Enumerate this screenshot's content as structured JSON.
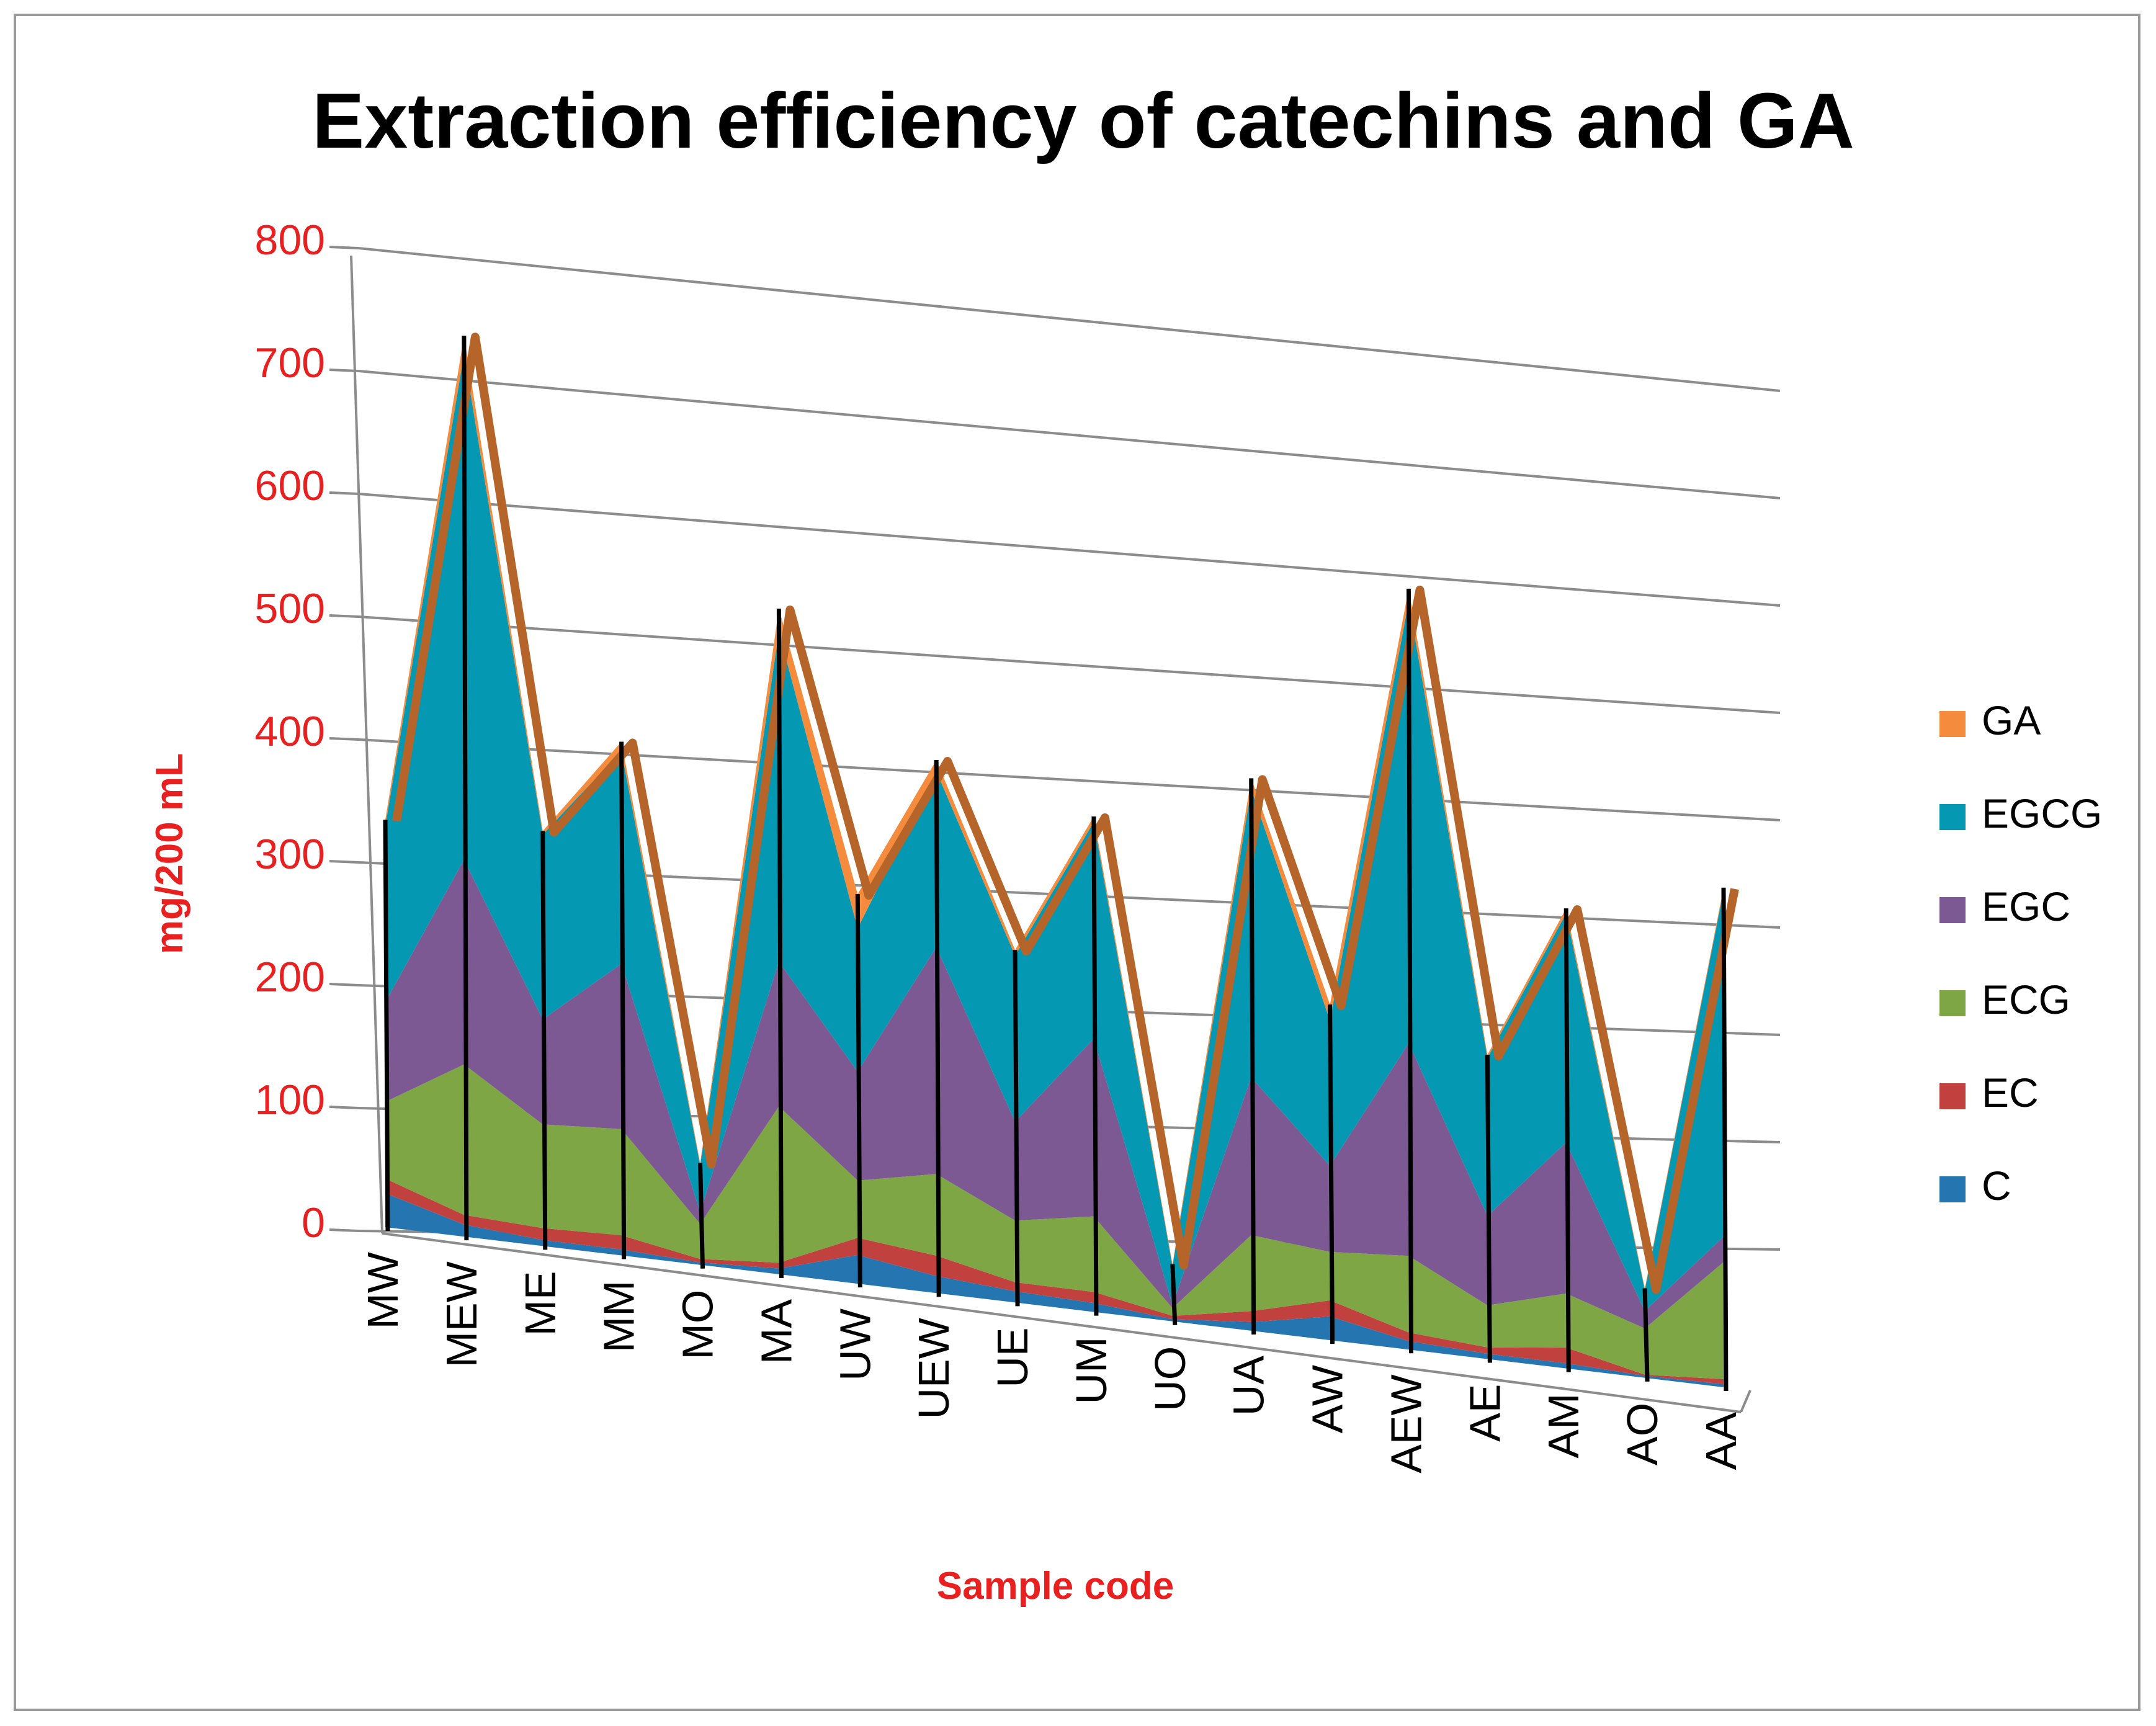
{
  "chart_data": {
    "type": "area",
    "stacked": true,
    "three_d": true,
    "title": "Extraction efficiency of catechins and GA",
    "xlabel": "Sample code",
    "ylabel": "mg/200 mL",
    "ylim": [
      0,
      800
    ],
    "yticks": [
      0,
      100,
      200,
      300,
      400,
      500,
      600,
      700,
      800
    ],
    "ytick_labels": [
      "0",
      "100",
      "200",
      "300",
      "400",
      "500",
      "600",
      "700",
      "800"
    ],
    "categories": [
      "MW",
      "MEW",
      "ME",
      "MM",
      "MO",
      "MA",
      "UW",
      "UEW",
      "UE",
      "UM",
      "UO",
      "UA",
      "AW",
      "AEW",
      "AE",
      "AM",
      "AO",
      "AA"
    ],
    "legend_position": "right",
    "series": [
      {
        "name": "C",
        "color": "#2475b0",
        "values": [
          28,
          10,
          5,
          5,
          2,
          5,
          25,
          15,
          10,
          8,
          2,
          8,
          22,
          8,
          5,
          5,
          2,
          3
        ]
      },
      {
        "name": "EC",
        "color": "#c0413e",
        "values": [
          12,
          8,
          10,
          12,
          3,
          5,
          15,
          18,
          8,
          10,
          3,
          10,
          15,
          8,
          6,
          15,
          1,
          5
        ]
      },
      {
        "name": "ECG",
        "color": "#7ea644",
        "values": [
          63,
          125,
          87,
          90,
          30,
          135,
          50,
          72,
          55,
          68,
          7,
          70,
          45,
          72,
          40,
          52,
          45,
          115
        ]
      },
      {
        "name": "EGC",
        "color": "#7d5993",
        "values": [
          82,
          170,
          88,
          140,
          10,
          125,
          95,
          200,
          88,
          160,
          3,
          145,
          80,
          200,
          85,
          145,
          17,
          25
        ]
      },
      {
        "name": "EGCG",
        "color": "#0598b2",
        "values": [
          145,
          420,
          155,
          180,
          40,
          285,
          125,
          155,
          148,
          195,
          35,
          265,
          135,
          415,
          150,
          220,
          20,
          340
        ]
      },
      {
        "name": "GA",
        "color": "#f58b3d",
        "values": [
          5,
          15,
          3,
          8,
          2,
          20,
          30,
          10,
          5,
          5,
          2,
          10,
          15,
          12,
          3,
          5,
          2,
          3
        ]
      }
    ]
  }
}
